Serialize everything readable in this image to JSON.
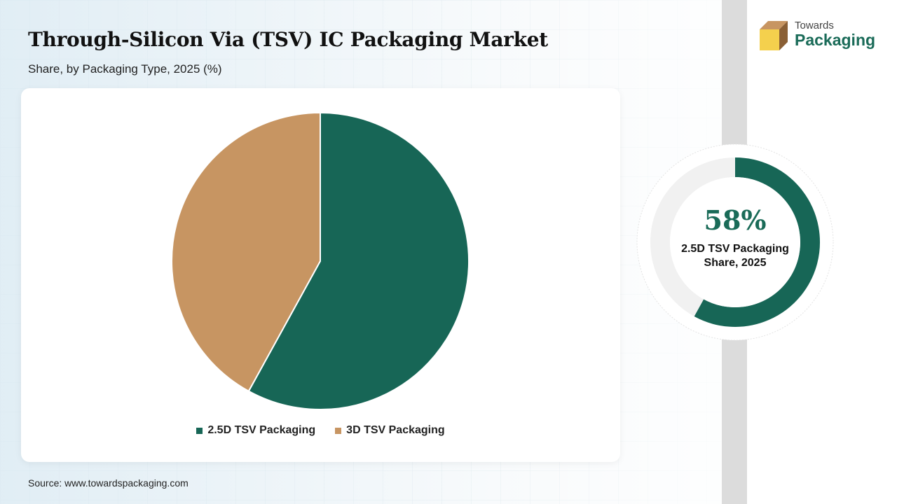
{
  "header": {
    "title": "Through-Silicon Via (TSV) IC Packaging Market",
    "subtitle": "Share, by Packaging Type, 2025 (%)"
  },
  "chart_data": {
    "type": "pie",
    "categories": [
      "2.5D TSV Packaging",
      "3D TSV Packaging"
    ],
    "values": [
      58,
      42
    ],
    "colors": [
      "#176656",
      "#c79562"
    ],
    "legend_position": "bottom"
  },
  "highlight": {
    "value": "58%",
    "value_fraction": 0.58,
    "label_line1": "2.5D TSV Packaging",
    "label_line2": "Share, 2025",
    "ring_color": "#176656",
    "track_color": "#f1f1f1"
  },
  "logo": {
    "line1": "Towards",
    "line2": "Packaging",
    "icon": "box-icon"
  },
  "footer": {
    "source": "Source: www.towardspackaging.com"
  }
}
